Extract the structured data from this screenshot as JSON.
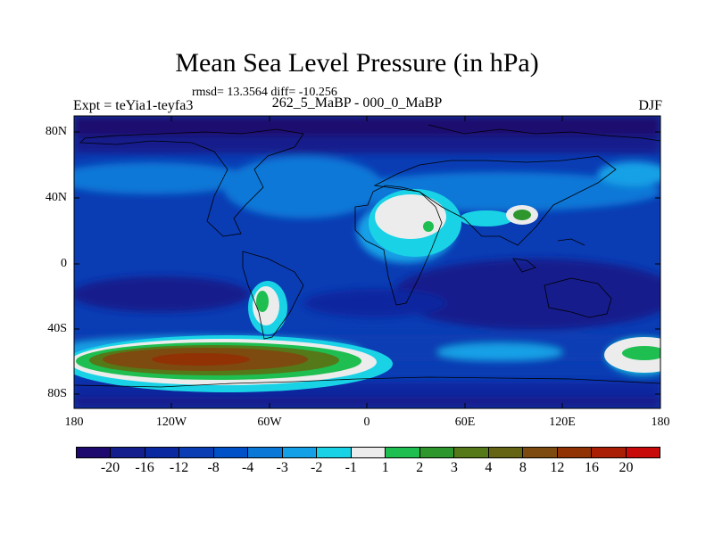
{
  "title": "Mean Sea Level Pressure (in hPa)",
  "subtitle": "rmsd= 13.3564 diff= -10.256",
  "center_string": "262_5_MaBP - 000_0_MaBP",
  "left_string": "Expt = teYia1-teyfa3",
  "right_string": "DJF",
  "lat_labels": [
    "80N",
    "40N",
    "0",
    "40S",
    "80S"
  ],
  "lon_labels": [
    "180",
    "120W",
    "60W",
    "0",
    "60E",
    "120E",
    "180"
  ],
  "colorbar": {
    "colors": [
      "#1e0a6e",
      "#141e8c",
      "#0a28a0",
      "#0a3cb4",
      "#0050c8",
      "#0a78d7",
      "#14a0e6",
      "#19d2e6",
      "#ececec",
      "#1ebe50",
      "#2d962d",
      "#557819",
      "#646414",
      "#7d4b0f",
      "#913205",
      "#aa1e05",
      "#c80a0a"
    ],
    "labels": [
      "-20",
      "-16",
      "-12",
      "-8",
      "-4",
      "-3",
      "-2",
      "-1",
      "1",
      "2",
      "3",
      "4",
      "8",
      "12",
      "16",
      "20"
    ]
  }
}
